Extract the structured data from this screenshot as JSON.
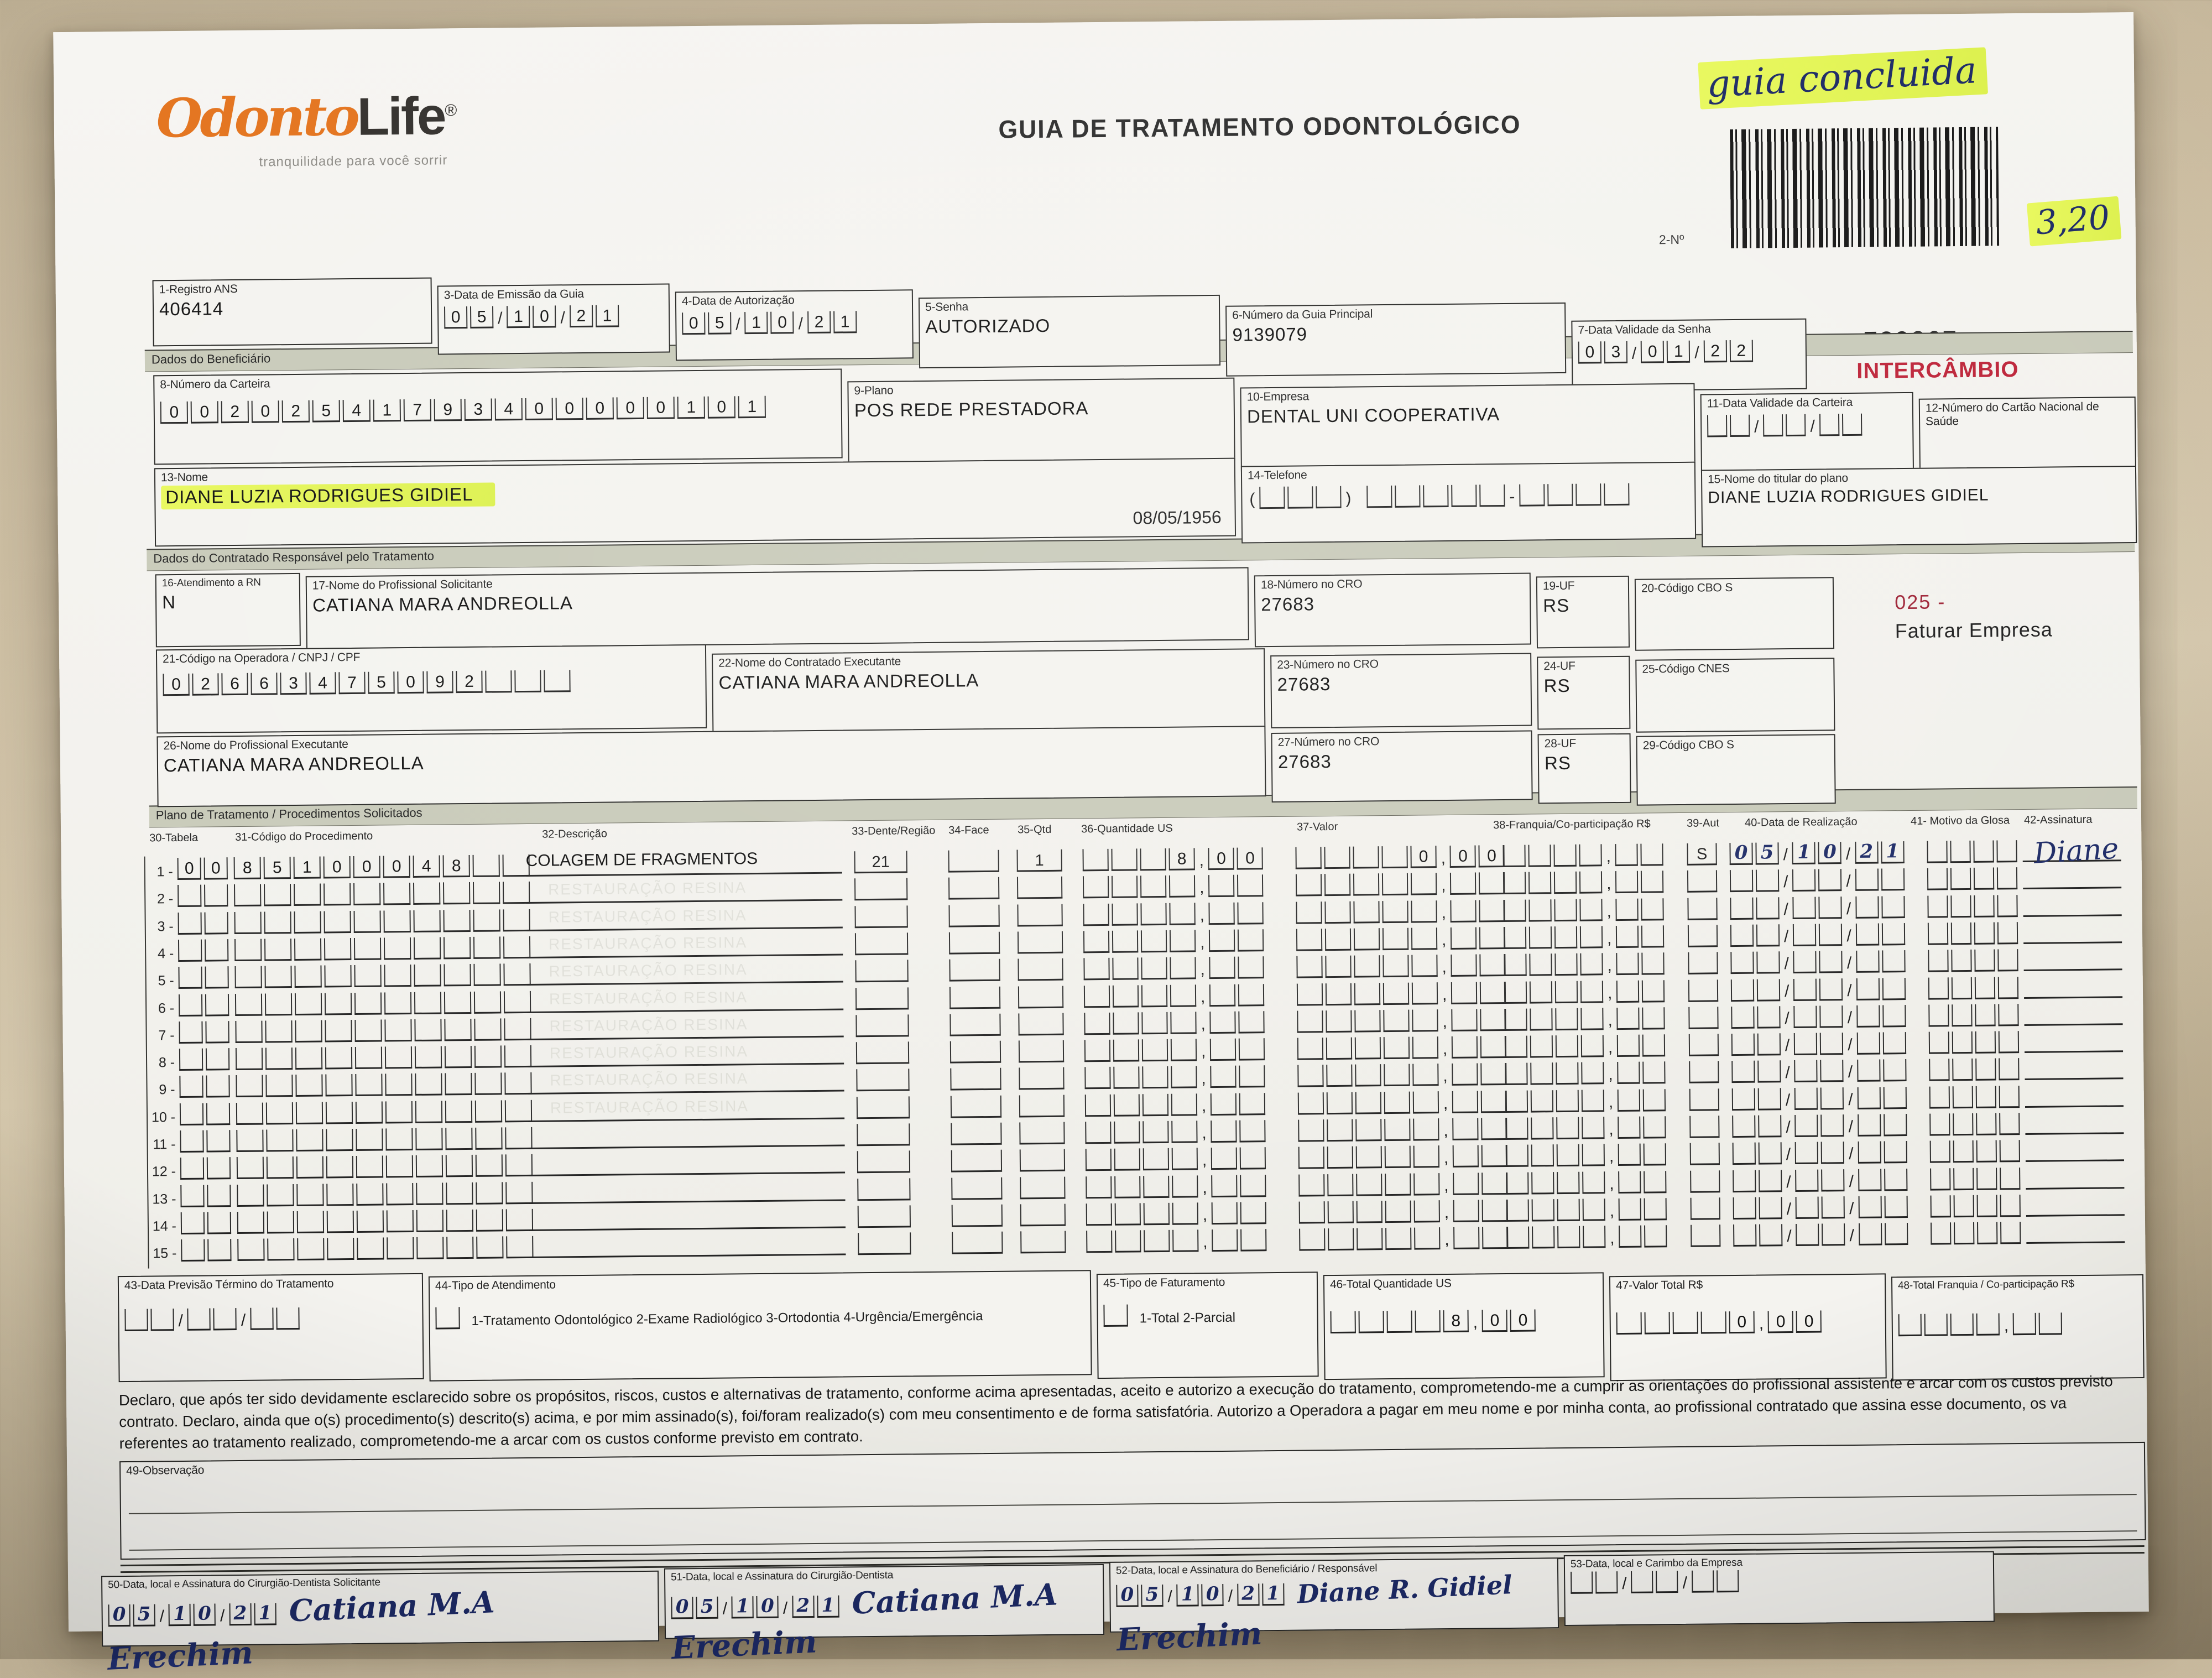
{
  "annotations": {
    "note": "guia concluida",
    "amount": "3,20",
    "place_50": "Erechim",
    "place_51": "Erechim",
    "place_52": "Erechim"
  },
  "header": {
    "logo_odonto": "Odonto",
    "logo_life": "Life",
    "logo_reg": "®",
    "tagline": "tranquilidade para você sorrir",
    "title": "GUIA DE TRATAMENTO ODONTOLÓGICO",
    "barcode_label": "2-Nº",
    "guide_number": "729267",
    "intercambio": "INTERCÂMBIO"
  },
  "sections": {
    "beneficiario": "Dados do Beneficiário",
    "contratado": "Dados do Contratado Responsável pelo Tratamento",
    "plano": "Plano de Tratamento / Procedimentos Solicitados"
  },
  "fields": {
    "f1": {
      "label": "1-Registro ANS",
      "value": "406414"
    },
    "f3": {
      "label": "3-Data de Emissão da Guia",
      "value": "051021"
    },
    "f4": {
      "label": "4-Data de Autorização",
      "value": "051021"
    },
    "f5": {
      "label": "5-Senha",
      "value": "AUTORIZADO"
    },
    "f6": {
      "label": "6-Número da Guia Principal",
      "value": "9139079"
    },
    "f7": {
      "label": "7-Data Validade da Senha",
      "value": "030122"
    },
    "f8": {
      "label": "8-Número da Carteira",
      "value": "00202541793400000101"
    },
    "f9": {
      "label": "9-Plano",
      "value": "POS REDE PRESTADORA"
    },
    "f10": {
      "label": "10-Empresa",
      "value": "DENTAL UNI  COOPERATIVA"
    },
    "f11": {
      "label": "11-Data Validade da Carteira",
      "value": ""
    },
    "f12": {
      "label": "12-Número do Cartão Nacional de Saúde",
      "value": ""
    },
    "f13": {
      "label": "13-Nome",
      "value": "DIANE LUZIA RODRIGUES GIDIEL",
      "birthdate": "08/05/1956"
    },
    "f14": {
      "label": "14-Telefone",
      "value": ""
    },
    "f15": {
      "label": "15-Nome do titular do plano",
      "value": "DIANE LUZIA RODRIGUES GIDIEL"
    },
    "f16": {
      "label": "16-Atendimento a RN",
      "value": "N"
    },
    "f17": {
      "label": "17-Nome do Profissional Solicitante",
      "value": "CATIANA MARA ANDREOLLA"
    },
    "f18": {
      "label": "18-Número no CRO",
      "value": "27683"
    },
    "f19": {
      "label": "19-UF",
      "value": "RS"
    },
    "f20": {
      "label": "20-Código CBO S",
      "value": ""
    },
    "f21": {
      "label": "21-Código na Operadora / CNPJ / CPF",
      "value": "02663475092   "
    },
    "f22": {
      "label": "22-Nome do Contratado Executante",
      "value": "CATIANA MARA ANDREOLLA"
    },
    "f23": {
      "label": "23-Número no CRO",
      "value": "27683"
    },
    "f24": {
      "label": "24-UF",
      "value": "RS"
    },
    "f25": {
      "label": "25-Código CNES",
      "value": ""
    },
    "f26": {
      "label": "26-Nome do Profissional Executante",
      "value": "CATIANA MARA ANDREOLLA"
    },
    "f27": {
      "label": "27-Número no CRO",
      "value": "27683"
    },
    "f28": {
      "label": "28-UF",
      "value": "RS"
    },
    "f29": {
      "label": "29-Código CBO S",
      "value": ""
    },
    "badge": {
      "number": "025 -",
      "text": "Faturar Empresa"
    },
    "f43": {
      "label": "43-Data Previsão Término do Tratamento",
      "value": ""
    },
    "f44": {
      "label": "44-Tipo de Atendimento",
      "options": "1-Tratamento Odontológico  2-Exame Radiológico  3-Ortodontia  4-Urgência/Emergência",
      "value": ""
    },
    "f45": {
      "label": "45-Tipo de Faturamento",
      "options": "1-Total  2-Parcial",
      "value": ""
    },
    "f46": {
      "label": "46-Total Quantidade US",
      "value": "    800"
    },
    "f47": {
      "label": "47-Valor Total R$",
      "value": "    000"
    },
    "f48": {
      "label": "48-Total Franquia / Co-participação R$",
      "value": ""
    },
    "f49": {
      "label": "49-Observação"
    },
    "f50": {
      "label": "50-Data, local e Assinatura do Cirurgião-Dentista Solicitante",
      "date": "051021",
      "signature": "Catiana M.A"
    },
    "f51": {
      "label": "51-Data, local e Assinatura do Cirurgião-Dentista",
      "date": "051021",
      "signature": "Catiana M.A"
    },
    "f52": {
      "label": "52-Data, local e Assinatura do Beneficiário / Responsável",
      "date": "051021",
      "signature": "Diane R. Gidiel"
    },
    "f53": {
      "label": "53-Data, local e Carimbo da Empresa",
      "value": ""
    }
  },
  "table": {
    "headers": [
      "30-Tabela",
      "31-Código do Procedimento",
      "32-Descrição",
      "33-Dente/Região",
      "34-Face",
      "35-Qtd",
      "36-Quantidade US",
      "37-Valor",
      "38-Franquia/Co-participação R$",
      "39-Aut",
      "40-Data de Realização",
      "41- Motivo da Glosa",
      "42-Assinatura"
    ],
    "ghost_text": "RESTAURAÇÃO RESINA",
    "rows": [
      {
        "tabela": "00",
        "codigo": "85100048",
        "descricao": "COLAGEM DE FRAGMENTOS",
        "dente": "21",
        "face": "",
        "qtd": "1",
        "us": "   800",
        "valor": "    000",
        "franquia": "",
        "aut": "S",
        "data": "051021",
        "glosa": "",
        "assinatura": "Diane"
      },
      {
        "ghost": true
      },
      {
        "ghost": true
      },
      {
        "ghost": true
      },
      {
        "ghost": true
      },
      {
        "ghost": true
      },
      {
        "ghost": true
      },
      {
        "ghost": true
      },
      {
        "ghost": true
      },
      {
        "ghost": true
      },
      {},
      {},
      {},
      {},
      {}
    ]
  },
  "declaration": {
    "line1": "Declaro, que após ter sido devidamente esclarecido sobre os propósitos, riscos, custos e alternativas de tratamento, conforme acima apresentadas, aceito e autorizo a execução do tratamento, comprometendo-me a cumprir as orientações do profissional assistente e arcar com os custos previsto",
    "line2": "contrato. Declaro, ainda que o(s) procedimento(s) descrito(s) acima, e por mim assinado(s), foi/foram realizado(s) com meu consentimento e de forma satisfatória. Autorizo a Operadora a pagar em meu nome e por minha conta, ao profissional contratado que assina esse documento, os va",
    "line3": "referentes ao tratamento realizado, comprometendo-me a arcar com os custos conforme previsto em contrato."
  }
}
